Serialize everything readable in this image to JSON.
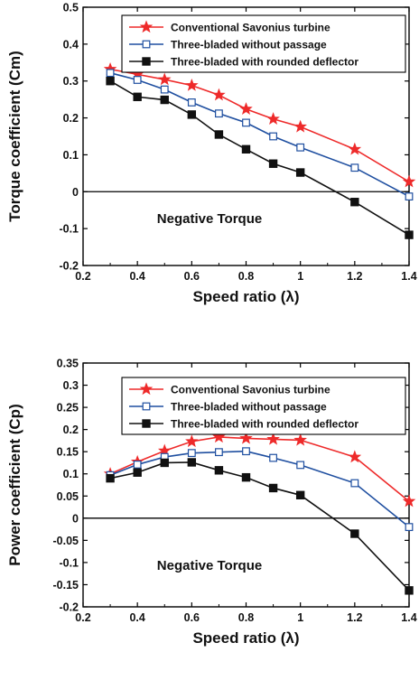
{
  "chart_data": [
    {
      "type": "line",
      "xlabel": "Speed ratio (λ)",
      "ylabel": "Torque coefficient (Cm)",
      "xlim": [
        0.2,
        1.4
      ],
      "ylim": [
        -0.2,
        0.5
      ],
      "xticks": [
        0.2,
        0.4,
        0.6,
        0.8,
        1.0,
        1.2,
        1.4
      ],
      "xtick_labels": [
        "0.2",
        "0.4",
        "0.6",
        "0.8",
        "1",
        "1.2",
        "1.4"
      ],
      "yticks": [
        -0.2,
        -0.1,
        0,
        0.1,
        0.2,
        0.3,
        0.4,
        0.5
      ],
      "ytick_labels": [
        "-0.2",
        "-0.1",
        "0",
        "0.1",
        "0.2",
        "0.3",
        "0.4",
        "0.5"
      ],
      "grid": false,
      "legend_position": "top-right",
      "annotation": "Negative Torque",
      "series": [
        {
          "name": "Conventional Savonius turbine",
          "color": "#ee2a2a",
          "marker": "star",
          "x": [
            0.3,
            0.4,
            0.5,
            0.6,
            0.7,
            0.8,
            0.9,
            1.0,
            1.2,
            1.4
          ],
          "y": [
            0.332,
            0.318,
            0.304,
            0.288,
            0.262,
            0.224,
            0.197,
            0.176,
            0.115,
            0.027
          ]
        },
        {
          "name": "Three-bladed without passage",
          "color": "#1f4fa0",
          "marker": "open-square",
          "x": [
            0.3,
            0.4,
            0.5,
            0.6,
            0.7,
            0.8,
            0.9,
            1.0,
            1.2,
            1.4
          ],
          "y": [
            0.322,
            0.303,
            0.277,
            0.242,
            0.212,
            0.187,
            0.15,
            0.12,
            0.065,
            -0.013
          ]
        },
        {
          "name": "Three-bladed with rounded deflector",
          "color": "#111111",
          "marker": "filled-square",
          "x": [
            0.3,
            0.4,
            0.5,
            0.6,
            0.7,
            0.8,
            0.9,
            1.0,
            1.2,
            1.4
          ],
          "y": [
            0.3,
            0.257,
            0.249,
            0.209,
            0.155,
            0.115,
            0.076,
            0.052,
            -0.028,
            -0.117
          ]
        }
      ]
    },
    {
      "type": "line",
      "xlabel": "Speed ratio (λ)",
      "ylabel": "Power coefficient (Cp)",
      "xlim": [
        0.2,
        1.4
      ],
      "ylim": [
        -0.2,
        0.35
      ],
      "xticks": [
        0.2,
        0.4,
        0.6,
        0.8,
        1.0,
        1.2,
        1.4
      ],
      "xtick_labels": [
        "0.2",
        "0.4",
        "0.6",
        "0.8",
        "1",
        "1.2",
        "1.4"
      ],
      "yticks": [
        -0.2,
        -0.15,
        -0.1,
        -0.05,
        0,
        0.05,
        0.1,
        0.15,
        0.2,
        0.25,
        0.3,
        0.35
      ],
      "ytick_labels": [
        "-0.2",
        "-0.15",
        "-0.1",
        "-0.05",
        "0",
        "0.05",
        "0.1",
        "0.15",
        "0.2",
        "0.25",
        "0.3",
        "0.35"
      ],
      "grid": false,
      "legend_position": "top-right",
      "annotation": "Negative Torque",
      "series": [
        {
          "name": "Conventional Savonius turbine",
          "color": "#ee2a2a",
          "marker": "star",
          "x": [
            0.3,
            0.4,
            0.5,
            0.6,
            0.7,
            0.8,
            0.9,
            1.0,
            1.2,
            1.4
          ],
          "y": [
            0.1,
            0.127,
            0.152,
            0.173,
            0.183,
            0.18,
            0.178,
            0.176,
            0.138,
            0.038
          ]
        },
        {
          "name": "Three-bladed without passage",
          "color": "#1f4fa0",
          "marker": "open-square",
          "x": [
            0.3,
            0.4,
            0.5,
            0.6,
            0.7,
            0.8,
            0.9,
            1.0,
            1.2,
            1.4
          ],
          "y": [
            0.097,
            0.121,
            0.138,
            0.147,
            0.149,
            0.151,
            0.136,
            0.12,
            0.079,
            -0.02
          ]
        },
        {
          "name": "Three-bladed with rounded deflector",
          "color": "#111111",
          "marker": "filled-square",
          "x": [
            0.3,
            0.4,
            0.5,
            0.6,
            0.7,
            0.8,
            0.9,
            1.0,
            1.2,
            1.4
          ],
          "y": [
            0.09,
            0.103,
            0.125,
            0.126,
            0.108,
            0.092,
            0.068,
            0.052,
            -0.035,
            -0.163
          ]
        }
      ]
    }
  ]
}
